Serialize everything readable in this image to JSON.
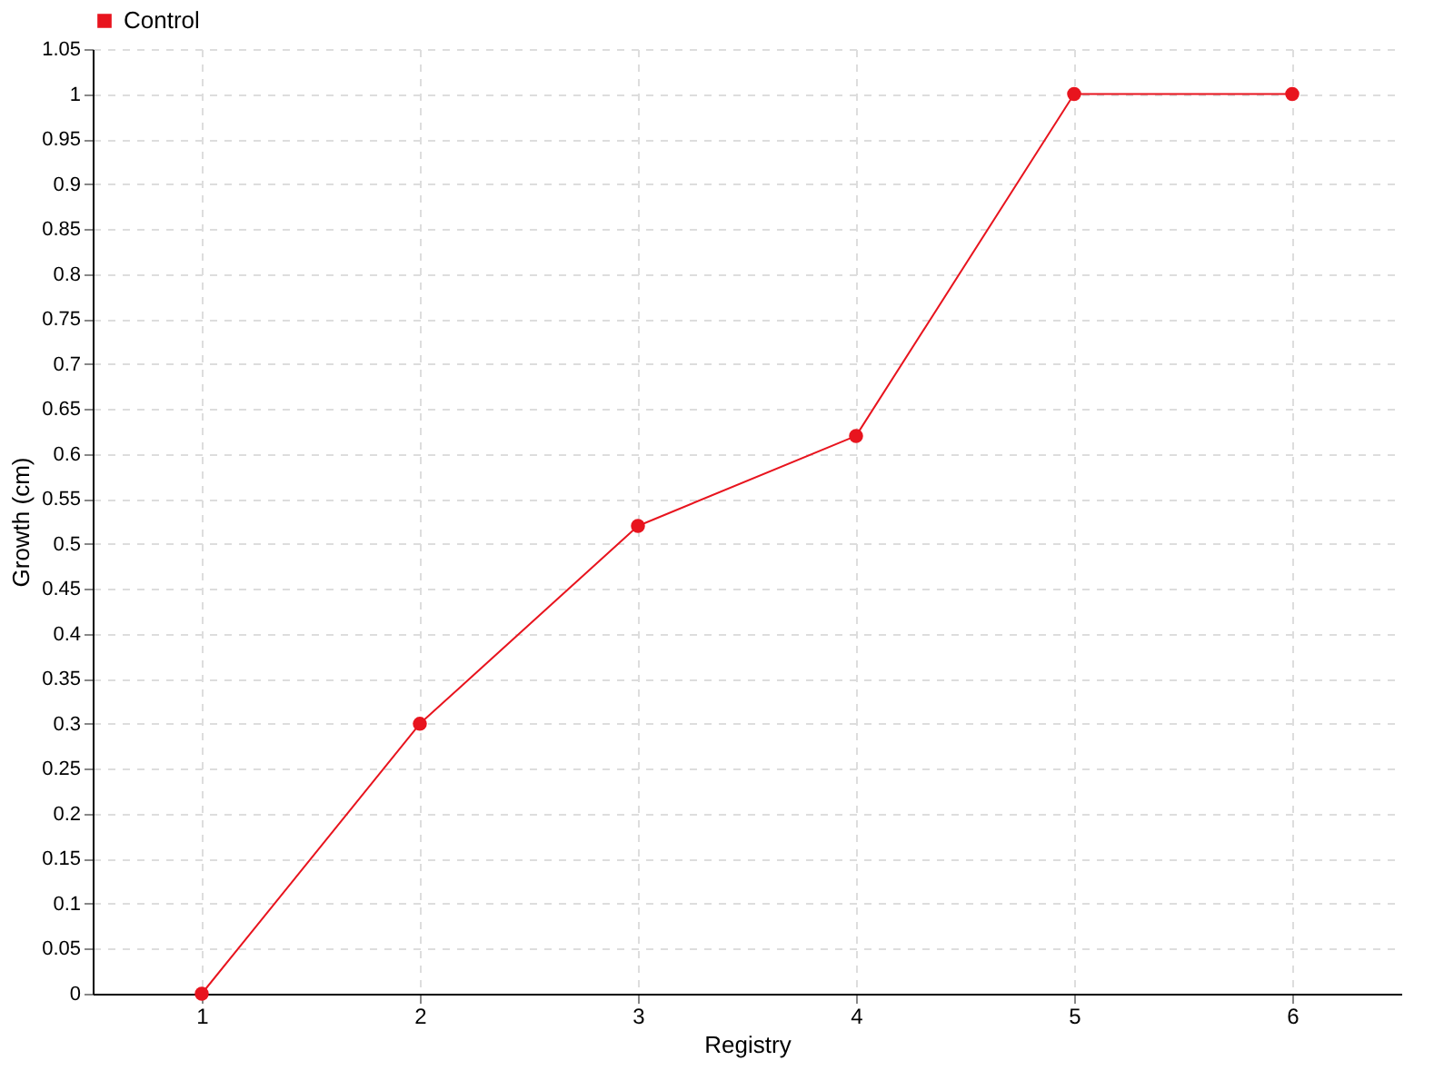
{
  "chart_data": {
    "type": "line",
    "xlabel": "Registry",
    "ylabel": "Growth (cm)",
    "x": [
      1,
      2,
      3,
      4,
      5,
      6
    ],
    "series": [
      {
        "name": "Control",
        "color": "#e8141e",
        "values": [
          0,
          0.3,
          0.52,
          0.62,
          1,
          1
        ]
      }
    ],
    "xlim": [
      0.5,
      6.5
    ],
    "xticks": [
      1,
      2,
      3,
      4,
      5,
      6
    ],
    "ylim": [
      0,
      1.05
    ],
    "yticks": [
      0,
      0.05,
      0.1,
      0.15,
      0.2,
      0.25,
      0.3,
      0.35,
      0.4,
      0.45,
      0.5,
      0.55,
      0.6,
      0.65,
      0.7,
      0.75,
      0.8,
      0.85,
      0.9,
      0.95,
      1,
      1.05
    ],
    "grid": true,
    "legend": "top left",
    "marker": "circle",
    "line_style": "solid"
  }
}
